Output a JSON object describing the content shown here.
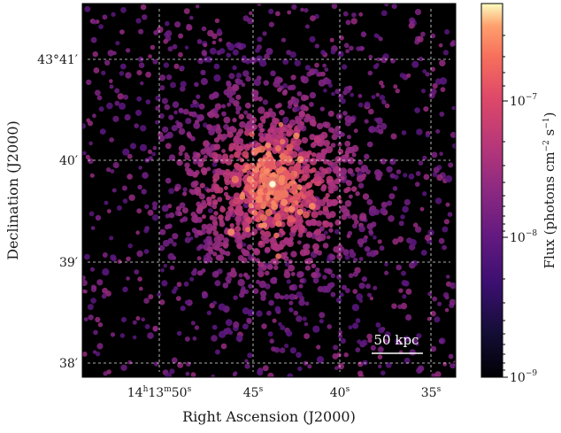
{
  "figure": {
    "xlabel": "Right Ascension (J2000)",
    "ylabel": "Declination (J2000)",
    "colorbar_label": "Flux (photons cm",
    "colorbar_label_exp1": "−2",
    "colorbar_label_mid": " s",
    "colorbar_label_exp2": "−1",
    "colorbar_label_end": ")",
    "scale_bar_label": "50 kpc",
    "ra_ticks": [
      {
        "h": "14",
        "hs": "h",
        "m": "13",
        "ms": "m",
        "s": "50",
        "ss": "s"
      },
      {
        "s": "45",
        "ss": "s"
      },
      {
        "s": "40",
        "ss": "s"
      },
      {
        "s": "35",
        "ss": "s"
      }
    ],
    "dec_ticks": [
      {
        "deg": "43°",
        "min": "41′"
      },
      {
        "min": "40′"
      },
      {
        "min": "39′"
      },
      {
        "min": "38′"
      }
    ],
    "colorbar_ticks": [
      {
        "base": "10",
        "exp": "−7"
      },
      {
        "base": "10",
        "exp": "−8"
      },
      {
        "base": "10",
        "exp": "−9"
      }
    ]
  },
  "chart_data": {
    "type": "heatmap",
    "xlabel": "Right Ascension (J2000)",
    "ylabel": "Declination (J2000)",
    "colorbar": {
      "label": "Flux (photons cm−2 s−1)",
      "scale": "log",
      "range": [
        1e-09,
        5e-07
      ],
      "ticks": [
        1e-09,
        1e-08,
        1e-07
      ],
      "colormap": "magma"
    },
    "ra_tick_labels": [
      "14h13m50s",
      "45s",
      "40s",
      "35s"
    ],
    "dec_tick_labels": [
      "43°41′",
      "40′",
      "39′",
      "38′"
    ],
    "grid": true,
    "scale_bar": "50 kpc",
    "background": "#000000"
  }
}
